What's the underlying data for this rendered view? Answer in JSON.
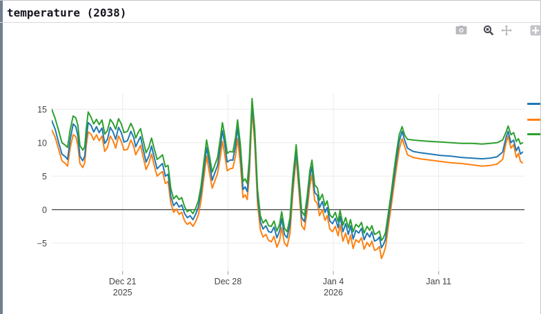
{
  "window": {
    "title": "temperature (2038)"
  },
  "toolbar": {
    "buttons": [
      {
        "name": "download-plot-camera",
        "active": false
      },
      {
        "name": "zoom",
        "active": true
      },
      {
        "name": "pan",
        "active": false
      },
      {
        "name": "zoom-in",
        "active": false
      },
      {
        "name": "partial-clipped-button",
        "active": false
      }
    ]
  },
  "colors": {
    "series_blue": "#1f77b4",
    "series_orange": "#ff7f0e",
    "series_green": "#2ca02c",
    "grid": "#ebebeb",
    "zero_line": "#3c3c3c",
    "tick_text": "#444444",
    "icon_inactive": "#b8b8bd",
    "icon_active": "#4c4c55",
    "edge_bar": "#72808f"
  },
  "legend": {
    "labels_visible": false,
    "note": "legend swatches clipped at right edge of window",
    "items": [
      {
        "name": "blue",
        "color": "#1f77b4"
      },
      {
        "name": "orange",
        "color": "#ff7f0e"
      },
      {
        "name": "green",
        "color": "#2ca02c"
      }
    ]
  },
  "chart_data": {
    "type": "line",
    "title": "temperature (2038)",
    "grid": true,
    "zero_line": true,
    "legend_position": "right-outside (labels cut off)",
    "x_unit": "days relative to Dec 21 2025",
    "x_range": [
      -4.71,
      26.7
    ],
    "y_range": [
      -9.2,
      17.3
    ],
    "y_ticks": [
      15,
      10,
      5,
      0,
      -5
    ],
    "x_ticks": [
      {
        "t": 0,
        "label": "Dec 21",
        "sublabel": "2025"
      },
      {
        "t": 7,
        "label": "Dec 28",
        "sublabel": ""
      },
      {
        "t": 14,
        "label": "Jan 4",
        "sublabel": "2026"
      },
      {
        "t": 21,
        "label": "Jan 11",
        "sublabel": ""
      }
    ],
    "x": [
      -4.71,
      -4.48,
      -4.25,
      -4.03,
      -3.8,
      -3.66,
      -3.48,
      -3.29,
      -3.11,
      -2.97,
      -2.84,
      -2.65,
      -2.52,
      -2.42,
      -2.29,
      -2.1,
      -1.92,
      -1.74,
      -1.56,
      -1.37,
      -1.19,
      -1.01,
      -0.82,
      -0.64,
      -0.46,
      -0.27,
      -0.09,
      0.09,
      0.32,
      0.55,
      0.73,
      0.87,
      1.05,
      1.19,
      1.37,
      1.56,
      1.74,
      1.92,
      2.1,
      2.29,
      2.47,
      2.65,
      2.84,
      3.02,
      3.2,
      3.39,
      3.57,
      3.75,
      3.93,
      4.12,
      4.3,
      4.48,
      4.67,
      4.85,
      5.03,
      5.21,
      5.4,
      5.58,
      5.76,
      5.95,
      6.13,
      6.31,
      6.5,
      6.63,
      6.77,
      6.95,
      7.13,
      7.32,
      7.5,
      7.64,
      7.82,
      8.0,
      8.14,
      8.28,
      8.42,
      8.6,
      8.78,
      8.97,
      9.15,
      9.33,
      9.52,
      9.7,
      9.88,
      10.06,
      10.25,
      10.43,
      10.57,
      10.75,
      10.93,
      11.12,
      11.3,
      11.53,
      11.71,
      11.9,
      12.08,
      12.26,
      12.44,
      12.58,
      12.76,
      12.95,
      13.08,
      13.27,
      13.45,
      13.59,
      13.77,
      13.95,
      14.13,
      14.32,
      14.45,
      14.64,
      14.82,
      15.0,
      15.14,
      15.32,
      15.5,
      15.69,
      15.87,
      16.05,
      16.24,
      16.42,
      16.56,
      16.74,
      16.92,
      17.06,
      17.2,
      17.33,
      17.47,
      17.65,
      17.84,
      18.02,
      18.2,
      18.38,
      18.57,
      18.75,
      18.93,
      19.3,
      19.76,
      20.45,
      21.13,
      21.82,
      22.5,
      23.19,
      23.88,
      24.42,
      24.88,
      25.25,
      25.48,
      25.62,
      25.8,
      25.98,
      26.16,
      26.3,
      26.44,
      26.57
    ],
    "series": [
      {
        "name": "blue",
        "color": "#1f77b4",
        "values": [
          13.3,
          12.0,
          10.0,
          8.3,
          7.9,
          7.5,
          10.5,
          12.8,
          12.4,
          11.0,
          8.0,
          7.3,
          8.0,
          10.5,
          13.0,
          12.6,
          11.6,
          12.4,
          11.5,
          12.2,
          9.9,
          10.5,
          12.3,
          11.6,
          10.5,
          12.3,
          11.5,
          10.1,
          10.3,
          11.7,
          10.8,
          9.4,
          10.3,
          10.9,
          9.0,
          7.1,
          8.0,
          9.5,
          7.8,
          6.1,
          6.5,
          6.9,
          5.0,
          5.3,
          2.0,
          0.6,
          1.1,
          0.4,
          0.7,
          -0.6,
          -1.2,
          -0.9,
          -1.5,
          -0.7,
          0.4,
          2.5,
          6.0,
          9.3,
          7.0,
          4.4,
          5.5,
          6.6,
          9.5,
          11.8,
          10.0,
          7.1,
          7.4,
          7.4,
          9.5,
          12.3,
          8.5,
          3.0,
          3.4,
          2.7,
          6.5,
          15.9,
          11.0,
          2.0,
          -1.8,
          -2.9,
          -2.4,
          -3.3,
          -3.4,
          -2.6,
          -4.2,
          -3.2,
          -1.3,
          -3.7,
          -4.2,
          -2.2,
          3.5,
          8.8,
          4.0,
          -1.2,
          -1.8,
          1.0,
          4.8,
          6.4,
          2.6,
          2.1,
          0.3,
          1.2,
          -0.4,
          0.3,
          -1.7,
          -2.1,
          -1.3,
          -2.7,
          -1.0,
          -3.3,
          -2.1,
          -3.7,
          -2.4,
          -4.4,
          -3.1,
          -3.5,
          -2.8,
          -4.5,
          -3.5,
          -4.1,
          -3.3,
          -4.7,
          -4.5,
          -4.1,
          -5.7,
          -5.2,
          -4.4,
          -1.5,
          1.5,
          4.5,
          7.5,
          10.2,
          11.7,
          10.3,
          9.2,
          8.7,
          8.5,
          8.3,
          8.1,
          8.0,
          7.8,
          7.7,
          7.6,
          7.7,
          7.9,
          8.6,
          10.8,
          11.7,
          10.0,
          10.4,
          8.8,
          9.4,
          8.3,
          8.6
        ]
      },
      {
        "name": "orange",
        "color": "#ff7f0e",
        "values": [
          11.9,
          10.8,
          9.0,
          7.3,
          6.9,
          6.5,
          9.3,
          11.2,
          10.9,
          9.6,
          6.9,
          6.3,
          7.0,
          9.5,
          11.6,
          11.3,
          10.4,
          11.2,
          10.3,
          11.0,
          8.7,
          9.3,
          11.0,
          10.3,
          9.2,
          11.0,
          10.2,
          8.9,
          9.0,
          10.4,
          9.5,
          8.2,
          9.0,
          9.6,
          7.8,
          6.0,
          6.9,
          8.3,
          6.6,
          5.0,
          5.4,
          5.7,
          3.9,
          4.2,
          1.0,
          -0.4,
          0.1,
          -0.7,
          -0.4,
          -1.7,
          -2.2,
          -1.9,
          -2.5,
          -1.8,
          -0.8,
          1.3,
          4.8,
          8.0,
          5.6,
          3.2,
          4.3,
          5.4,
          8.0,
          10.2,
          8.4,
          5.8,
          6.1,
          6.2,
          8.0,
          10.6,
          6.9,
          1.8,
          2.2,
          1.5,
          5.2,
          14.8,
          9.8,
          0.8,
          -3.0,
          -4.1,
          -3.7,
          -4.6,
          -4.8,
          -4.0,
          -5.6,
          -4.6,
          -2.7,
          -5.0,
          -5.5,
          -3.6,
          2.2,
          7.9,
          2.9,
          -2.4,
          -3.0,
          -0.2,
          3.6,
          5.2,
          1.4,
          0.9,
          -0.9,
          0.0,
          -1.6,
          -0.9,
          -2.9,
          -3.3,
          -2.5,
          -3.9,
          -2.3,
          -4.7,
          -3.5,
          -5.1,
          -3.8,
          -5.8,
          -4.5,
          -4.9,
          -4.2,
          -5.9,
          -4.9,
          -5.5,
          -4.7,
          -6.1,
          -5.9,
          -5.5,
          -7.3,
          -6.6,
          -5.6,
          -2.6,
          0.4,
          3.4,
          6.3,
          9.0,
          10.6,
          9.4,
          8.2,
          7.8,
          7.6,
          7.4,
          7.2,
          7.0,
          6.9,
          6.7,
          6.5,
          6.6,
          6.8,
          7.5,
          10.0,
          11.0,
          9.2,
          9.7,
          7.8,
          8.4,
          7.2,
          7.0
        ]
      },
      {
        "name": "green",
        "color": "#2ca02c",
        "values": [
          15.0,
          13.6,
          11.8,
          10.0,
          9.6,
          9.3,
          12.0,
          14.0,
          13.7,
          12.6,
          9.6,
          8.9,
          9.4,
          12.0,
          14.6,
          13.8,
          12.8,
          13.5,
          12.7,
          13.4,
          11.3,
          11.8,
          13.5,
          12.9,
          12.0,
          13.6,
          12.8,
          11.5,
          11.7,
          12.9,
          12.0,
          10.7,
          11.6,
          12.1,
          10.3,
          8.5,
          9.3,
          10.7,
          9.1,
          7.5,
          7.8,
          8.2,
          6.4,
          6.6,
          3.2,
          1.6,
          2.1,
          1.5,
          1.8,
          0.4,
          -0.3,
          0.0,
          -0.6,
          0.2,
          1.3,
          3.5,
          7.2,
          10.4,
          8.2,
          5.6,
          6.7,
          7.8,
          10.8,
          13.0,
          11.3,
          8.4,
          8.7,
          8.6,
          10.8,
          13.4,
          9.8,
          4.2,
          4.6,
          3.9,
          7.6,
          16.6,
          12.0,
          3.0,
          -0.9,
          -2.0,
          -1.5,
          -2.4,
          -2.5,
          -1.7,
          -3.2,
          -2.2,
          -0.3,
          -2.8,
          -3.3,
          -1.2,
          4.6,
          9.7,
          5.0,
          -0.2,
          -0.9,
          2.0,
          5.8,
          7.4,
          3.7,
          3.2,
          1.4,
          2.3,
          0.6,
          1.3,
          -0.8,
          -1.2,
          -0.4,
          -1.8,
          -0.1,
          -2.3,
          -1.2,
          -2.7,
          -1.5,
          -3.3,
          -2.2,
          -2.6,
          -1.9,
          -3.5,
          -2.5,
          -3.1,
          -2.4,
          -3.7,
          -3.5,
          -3.2,
          -4.6,
          -4.2,
          -3.4,
          -0.6,
          2.4,
          5.6,
          8.6,
          11.2,
          12.4,
          11.1,
          10.5,
          10.4,
          10.3,
          10.2,
          10.1,
          10.0,
          9.9,
          9.9,
          9.8,
          9.9,
          10.0,
          10.4,
          11.6,
          12.5,
          11.2,
          11.5,
          10.2,
          10.6,
          9.8,
          10.0
        ]
      }
    ]
  }
}
